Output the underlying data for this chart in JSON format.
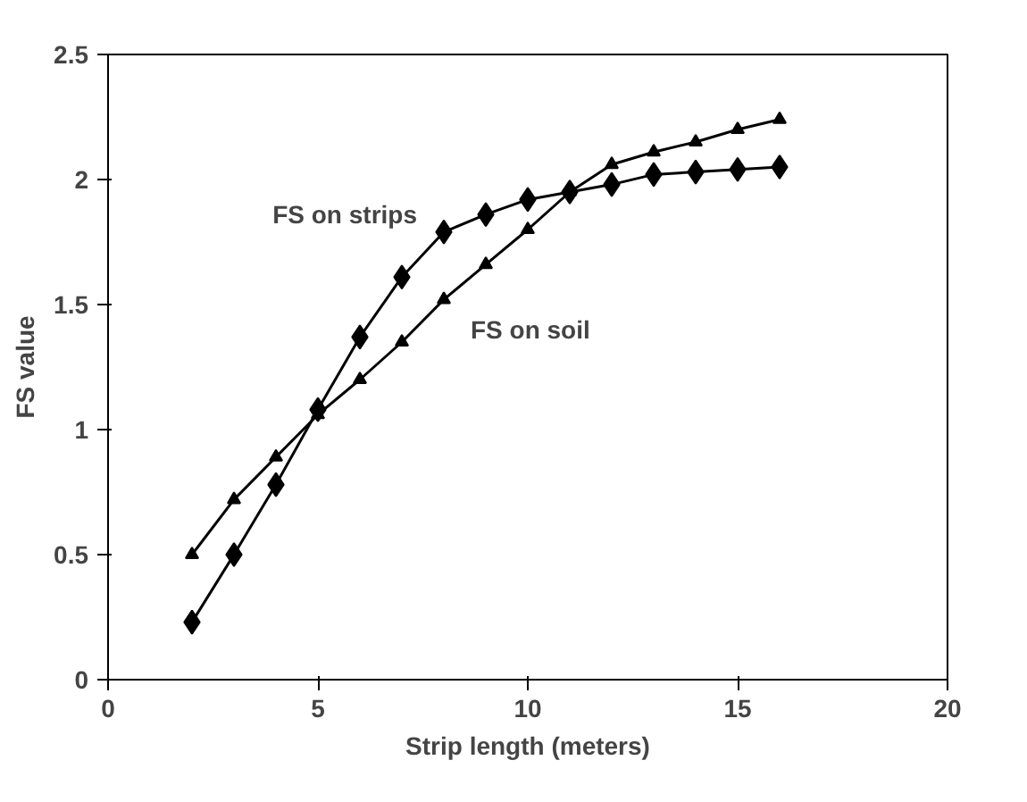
{
  "chart_data": {
    "type": "line",
    "xlabel": "Strip length (meters)",
    "ylabel": "FS value",
    "xlim": [
      0,
      20
    ],
    "xticks": [
      0,
      5,
      10,
      15,
      20
    ],
    "ylim": [
      0,
      2.5
    ],
    "yticks": [
      0,
      0.5,
      1,
      1.5,
      2,
      2.5
    ],
    "grid": false,
    "series": [
      {
        "name": "FS on strips",
        "color": "#000000",
        "marker": "diamond",
        "x": [
          2,
          3,
          4,
          5,
          6,
          7,
          8,
          9,
          10,
          11,
          12,
          13,
          14,
          15,
          16
        ],
        "values": [
          0.23,
          0.5,
          0.78,
          1.08,
          1.37,
          1.61,
          1.79,
          1.86,
          1.92,
          1.95,
          1.98,
          2.02,
          2.03,
          2.04,
          2.05
        ]
      },
      {
        "name": "FS on soil",
        "color": "#000000",
        "marker": "triangle",
        "x": [
          2,
          3,
          4,
          5,
          6,
          7,
          8,
          9,
          10,
          11,
          12,
          13,
          14,
          15,
          16
        ],
        "values": [
          0.5,
          0.72,
          0.89,
          1.06,
          1.2,
          1.35,
          1.52,
          1.66,
          1.8,
          1.95,
          2.06,
          2.11,
          2.15,
          2.2,
          2.24
        ]
      }
    ]
  }
}
